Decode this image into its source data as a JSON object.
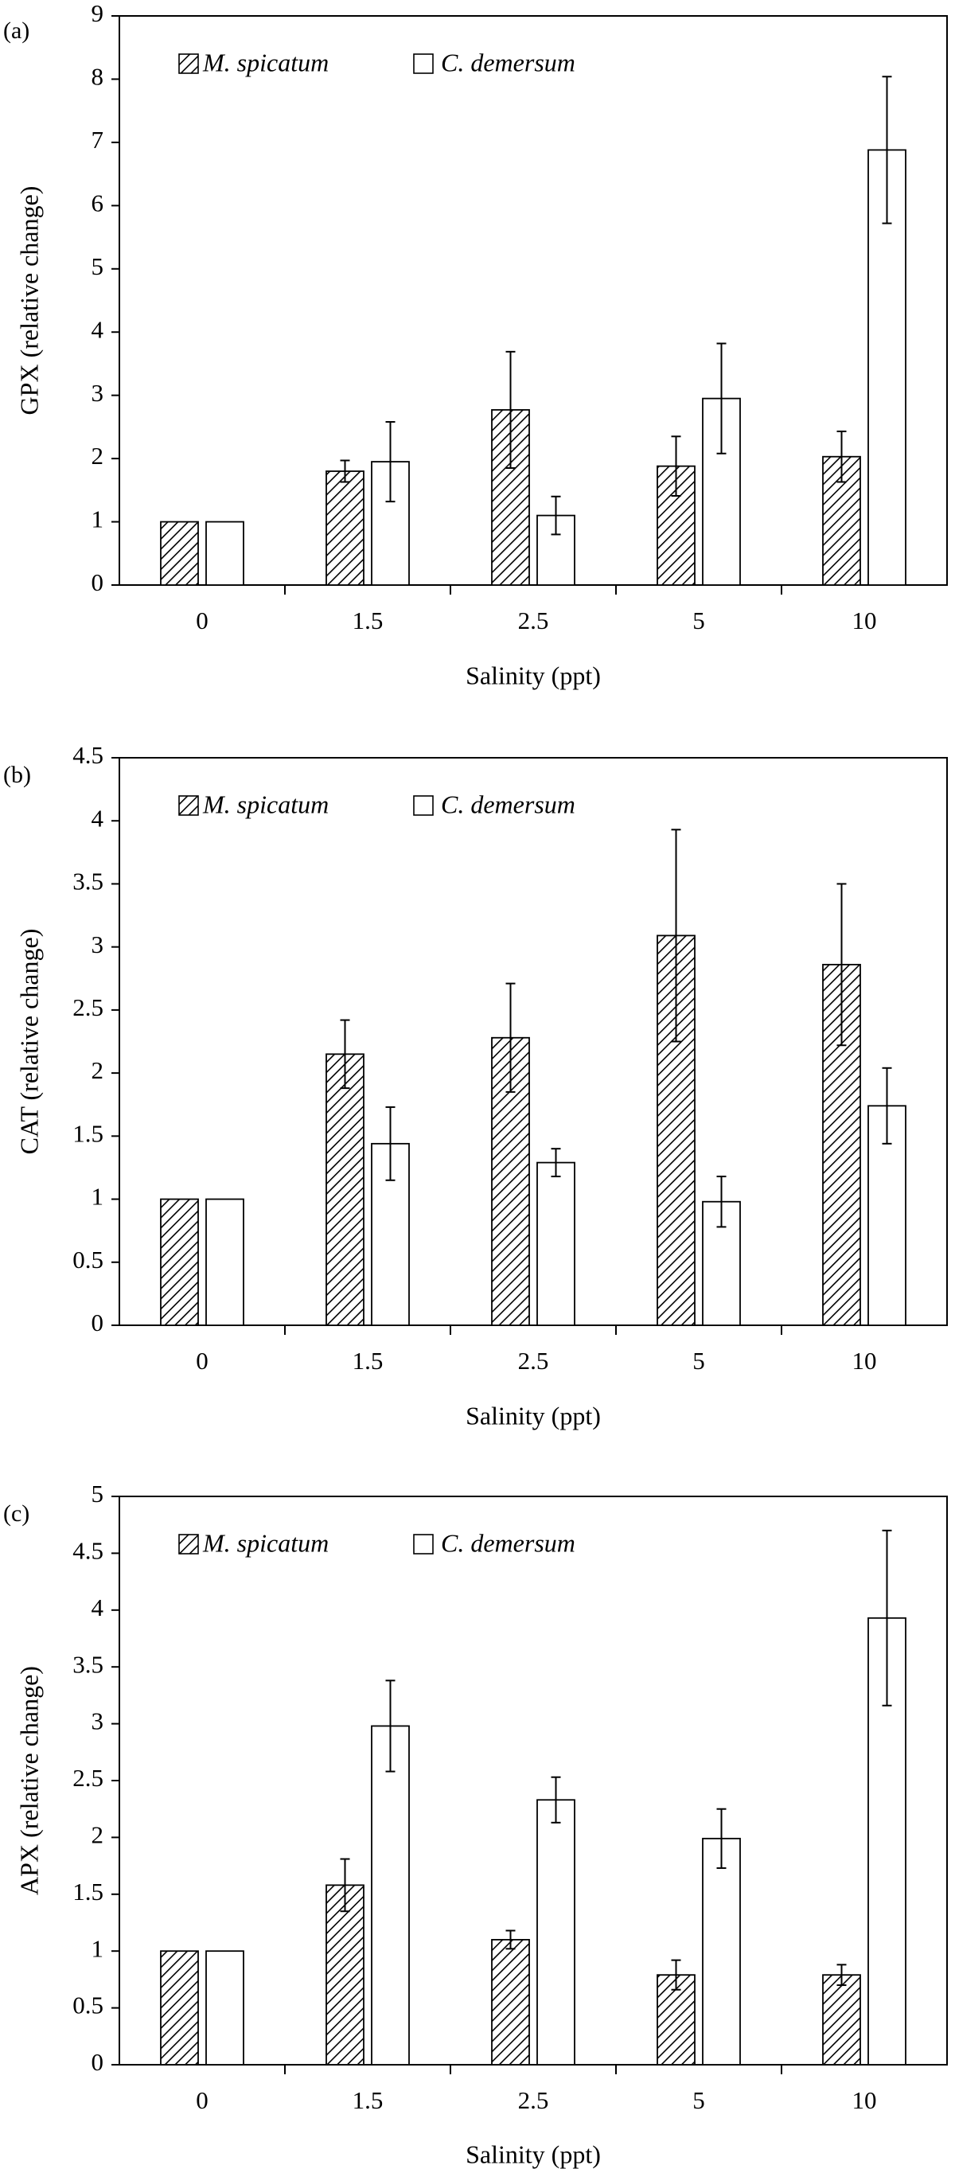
{
  "chart_data": [
    {
      "type": "bar",
      "panel_label": "(a)",
      "ylabel": "GPX (relative change)",
      "xlabel": "Salinity (ppt)",
      "categories": [
        "0",
        "1.5",
        "2.5",
        "5",
        "10"
      ],
      "ylim": [
        0,
        9
      ],
      "yticks": [
        "0",
        "1",
        "2",
        "3",
        "4",
        "5",
        "6",
        "7",
        "8",
        "9"
      ],
      "legend_position": "top-left",
      "grid": false,
      "series": [
        {
          "name": "M. spicatum",
          "pattern": "hatched",
          "values": [
            1.0,
            1.8,
            2.77,
            1.88,
            2.03
          ],
          "errors": [
            0,
            0.17,
            0.92,
            0.47,
            0.4
          ]
        },
        {
          "name": "C. demersum",
          "pattern": "open",
          "values": [
            1.0,
            1.95,
            1.1,
            2.95,
            6.88
          ],
          "errors": [
            0,
            0.63,
            0.3,
            0.87,
            1.16
          ]
        }
      ]
    },
    {
      "type": "bar",
      "panel_label": "(b)",
      "ylabel": "CAT (relative change)",
      "xlabel": "Salinity (ppt)",
      "categories": [
        "0",
        "1.5",
        "2.5",
        "5",
        "10"
      ],
      "ylim": [
        0,
        4.5
      ],
      "yticks": [
        "0",
        "0.5",
        "1",
        "1.5",
        "2",
        "2.5",
        "3",
        "3.5",
        "4",
        "4.5"
      ],
      "legend_position": "top-left",
      "grid": false,
      "series": [
        {
          "name": "M. spicatum",
          "pattern": "hatched",
          "values": [
            1.0,
            2.15,
            2.28,
            3.09,
            2.86
          ],
          "errors": [
            0,
            0.27,
            0.43,
            0.84,
            0.64
          ]
        },
        {
          "name": "C. demersum",
          "pattern": "open",
          "values": [
            1.0,
            1.44,
            1.29,
            0.98,
            1.74
          ],
          "errors": [
            0,
            0.29,
            0.11,
            0.2,
            0.3
          ]
        }
      ]
    },
    {
      "type": "bar",
      "panel_label": "(c)",
      "ylabel": "APX (relative change)",
      "xlabel": "Salinity (ppt)",
      "categories": [
        "0",
        "1.5",
        "2.5",
        "5",
        "10"
      ],
      "ylim": [
        0,
        5
      ],
      "yticks": [
        "0",
        "0.5",
        "1",
        "1.5",
        "2",
        "2.5",
        "3",
        "3.5",
        "4",
        "4.5",
        "5"
      ],
      "legend_position": "top-left",
      "grid": false,
      "series": [
        {
          "name": "M. spicatum",
          "pattern": "hatched",
          "values": [
            1.0,
            1.58,
            1.1,
            0.79,
            0.79
          ],
          "errors": [
            0,
            0.23,
            0.08,
            0.13,
            0.09
          ]
        },
        {
          "name": "C. demersum",
          "pattern": "open",
          "values": [
            1.0,
            2.98,
            2.33,
            1.99,
            3.93
          ],
          "errors": [
            0,
            0.4,
            0.2,
            0.26,
            0.77
          ]
        }
      ]
    }
  ]
}
